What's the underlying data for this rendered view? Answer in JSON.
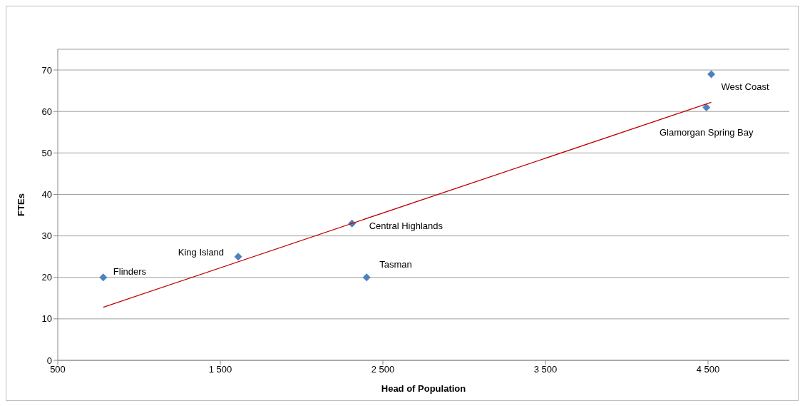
{
  "chart_data": {
    "type": "scatter",
    "xlabel": "Head of Population",
    "ylabel": "FTEs",
    "xlim": [
      500,
      5000
    ],
    "xticks": [
      500,
      {
        "value": 1500,
        "label": "1 500"
      },
      {
        "value": 2500,
        "label": "2 500"
      },
      {
        "value": 3500,
        "label": "3 500"
      },
      {
        "value": 4500,
        "label": "4 500"
      }
    ],
    "ylim": [
      0,
      75
    ],
    "yticks": [
      0,
      10,
      20,
      30,
      40,
      50,
      60,
      70
    ],
    "grid": "y",
    "series": [
      {
        "marker": "diamond",
        "color": "#4f81bd",
        "x": [
          780,
          1610,
          2310,
          2400,
          4490,
          4520
        ],
        "values": [
          20,
          25,
          33,
          20,
          61,
          69
        ]
      },
      {
        "type": "line",
        "marker": "none",
        "color": "#c00000",
        "x": [
          780,
          4520
        ],
        "values": [
          12.8,
          62.2
        ]
      }
    ],
    "annotations": [
      {
        "text": "Flinders",
        "x": 780,
        "y": 20
      },
      {
        "text": "King Island",
        "x": 1610,
        "y": 25
      },
      {
        "text": "Central Highlands",
        "x": 2310,
        "y": 33
      },
      {
        "text": "Tasman",
        "x": 2400,
        "y": 20
      },
      {
        "text": "Glamorgan Spring Bay",
        "x": 4490,
        "y": 61
      },
      {
        "text": "West Coast",
        "x": 4520,
        "y": 69
      }
    ]
  }
}
